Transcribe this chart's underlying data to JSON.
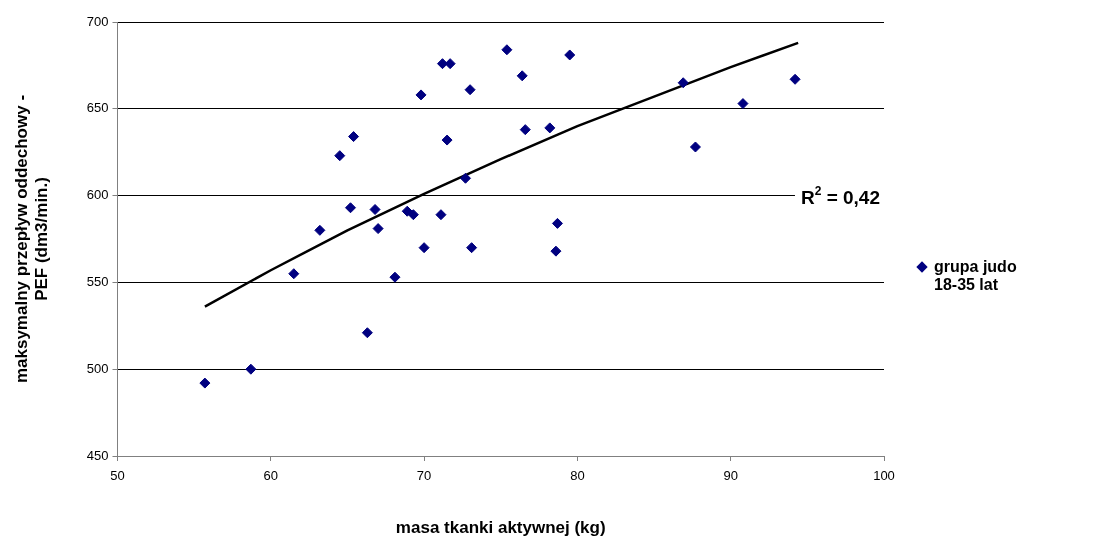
{
  "chart_data": {
    "type": "scatter",
    "xlabel": "masa tkanki aktywnej (kg)",
    "ylabel": "maksymalny przepływ oddechowy - PEF (dm3/min.)",
    "xlim": [
      50,
      100
    ],
    "xticks": [
      50,
      60,
      70,
      80,
      90,
      100
    ],
    "ylim": [
      450,
      700
    ],
    "yticks": [
      450,
      500,
      550,
      600,
      650,
      700
    ],
    "grid": "y",
    "legend": "right",
    "marker": "diamond",
    "series": [
      {
        "name": "grupa judo 18-35 lat",
        "color": "#000080",
        "x": [
          55.7,
          58.7,
          61.5,
          63.2,
          64.5,
          65.4,
          65.2,
          66.3,
          66.8,
          67.0,
          68.1,
          68.9,
          69.3,
          69.8,
          70.0,
          71.2,
          71.5,
          71.7,
          71.1,
          72.7,
          73.0,
          73.1,
          75.4,
          76.4,
          76.6,
          78.2,
          78.6,
          78.7,
          79.5,
          86.9,
          87.7,
          90.8,
          94.2
        ],
        "values": [
          492,
          500,
          555,
          580,
          623,
          634,
          593,
          521,
          592,
          581,
          553,
          591,
          589,
          658,
          570,
          676,
          632,
          676,
          589,
          610,
          661,
          570,
          684,
          669,
          638,
          639,
          568,
          584,
          681,
          665,
          628,
          653,
          667
        ]
      },
      {
        "color": "#000000",
        "type": "line",
        "marker": "none",
        "x": [
          55.7,
          60,
          65,
          70,
          75,
          80,
          85,
          90,
          94.4
        ],
        "values": [
          536,
          557,
          580,
          601,
          621,
          640,
          657,
          674,
          688
        ]
      }
    ],
    "annotations": [
      "R$^{2}$ = 0,42"
    ]
  }
}
